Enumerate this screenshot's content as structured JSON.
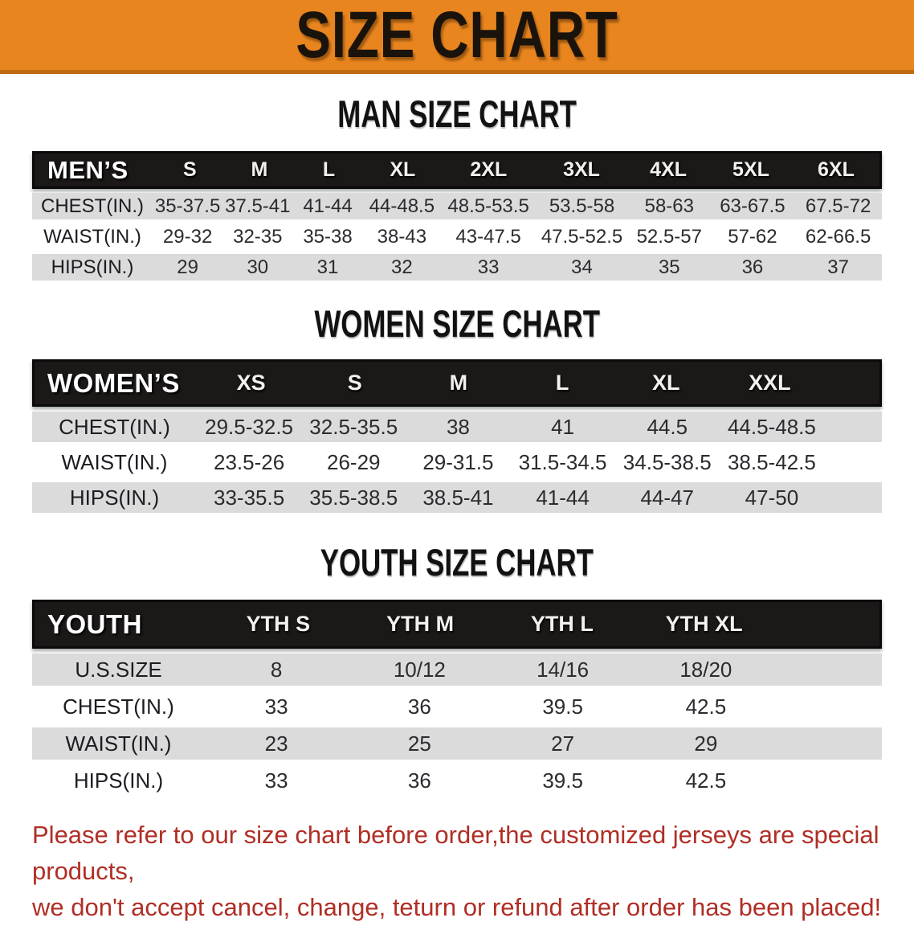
{
  "banner": {
    "title": "SIZE CHART",
    "bg_color": "#E8851F",
    "text_color": "#1A130C"
  },
  "colors": {
    "table_header_bg": "#1B1817",
    "table_header_text": "#FFFFFF",
    "row_stripe": "#DBDBDB",
    "row_text": "#2B2B30",
    "footer_text": "#B02E25"
  },
  "sections": [
    {
      "heading": "MAN SIZE CHART",
      "table": {
        "header_label": "MEN’S",
        "columns": [
          "S",
          "M",
          "L",
          "XL",
          "2XL",
          "3XL",
          "4XL",
          "5XL",
          "6XL"
        ],
        "rows": [
          {
            "label": "CHEST(IN.)",
            "values": [
              "35-37.5",
              "37.5-41",
              "41-44",
              "44-48.5",
              "48.5-53.5",
              "53.5-58",
              "58-63",
              "63-67.5",
              "67.5-72"
            ]
          },
          {
            "label": "WAIST(IN.)",
            "values": [
              "29-32",
              "32-35",
              "35-38",
              "38-43",
              "43-47.5",
              "47.5-52.5",
              "52.5-57",
              "57-62",
              "62-66.5"
            ]
          },
          {
            "label": "HIPS(IN.)",
            "values": [
              "29",
              "30",
              "31",
              "32",
              "33",
              "34",
              "35",
              "36",
              "37"
            ]
          }
        ]
      }
    },
    {
      "heading": "WOMEN SIZE CHART",
      "table": {
        "header_label": "WOMEN’S",
        "columns": [
          "XS",
          "S",
          "M",
          "L",
          "XL",
          "XXL"
        ],
        "rows": [
          {
            "label": "CHEST(IN.)",
            "values": [
              "29.5-32.5",
              "32.5-35.5",
              "38",
              "41",
              "44.5",
              "44.5-48.5"
            ]
          },
          {
            "label": "WAIST(IN.)",
            "values": [
              "23.5-26",
              "26-29",
              "29-31.5",
              "31.5-34.5",
              "34.5-38.5",
              "38.5-42.5"
            ]
          },
          {
            "label": "HIPS(IN.)",
            "values": [
              "33-35.5",
              "35.5-38.5",
              "38.5-41",
              "41-44",
              "44-47",
              "47-50"
            ]
          }
        ]
      }
    },
    {
      "heading": "YOUTH SIZE CHART",
      "table": {
        "header_label": "YOUTH",
        "columns": [
          "YTH S",
          "YTH M",
          "YTH L",
          "YTH XL"
        ],
        "rows": [
          {
            "label": "U.S.SIZE",
            "values": [
              "8",
              "10/12",
              "14/16",
              "18/20"
            ]
          },
          {
            "label": "CHEST(IN.)",
            "values": [
              "33",
              "36",
              "39.5",
              "42.5"
            ]
          },
          {
            "label": "WAIST(IN.)",
            "values": [
              "23",
              "25",
              "27",
              "29"
            ]
          },
          {
            "label": "HIPS(IN.)",
            "values": [
              "33",
              "36",
              "39.5",
              "42.5"
            ]
          }
        ]
      }
    }
  ],
  "footer": {
    "line1": "Please refer to our size chart before order,the customized jerseys are special products,",
    "line2": "we don't accept cancel, change, teturn or refund after order has been placed!"
  }
}
